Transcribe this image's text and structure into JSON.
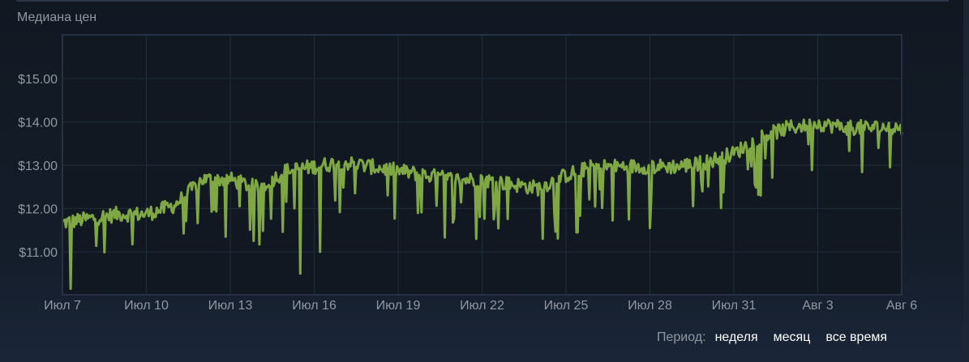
{
  "chart_title": "Медиана цен",
  "period": {
    "label": "Период:",
    "options": [
      "неделя",
      "месяц",
      "все время"
    ]
  },
  "colors": {
    "line": "#7fa844",
    "grid": "#1f2a38",
    "plot_border": "#263244",
    "axis_text": "#8f98a0"
  },
  "chart_data": {
    "type": "line",
    "title": "Медиана цен",
    "xlabel": "",
    "ylabel": "",
    "ylim": [
      10.0,
      16.0
    ],
    "yticks": [
      "$11.00",
      "$12.00",
      "$13.00",
      "$14.00",
      "$15.00"
    ],
    "ytick_values": [
      11,
      12,
      13,
      14,
      15
    ],
    "xticks": [
      "Июл 7",
      "Июл 10",
      "Июл 13",
      "Июл 16",
      "Июл 19",
      "Июл 22",
      "Июл 25",
      "Июл 28",
      "Июл 31",
      "Авг 3",
      "Авг 6"
    ],
    "grid": true,
    "legend": "none",
    "series": [
      {
        "name": "Медиана цен",
        "x_start": "Июл 7",
        "x_end": "Авг 6",
        "trend_days": [
          0,
          1,
          2,
          3,
          4,
          5,
          6,
          7,
          8,
          9,
          10,
          11,
          12,
          13,
          14,
          15,
          16,
          17,
          18,
          19,
          20,
          21,
          22,
          23,
          24,
          25,
          26,
          27,
          28,
          29,
          30
        ],
        "trend_values": [
          11.6,
          11.7,
          11.8,
          11.8,
          12.0,
          12.6,
          12.6,
          12.4,
          12.8,
          12.9,
          13.0,
          12.9,
          12.8,
          12.7,
          12.6,
          12.6,
          12.5,
          12.4,
          12.7,
          12.9,
          12.9,
          12.9,
          12.9,
          13.0,
          13.2,
          13.6,
          13.8,
          13.9,
          13.8,
          13.8,
          13.8
        ],
        "min_value": 10.15,
        "max_value": 14.05,
        "notable_dips": [
          {
            "day": 0.3,
            "value": 10.15
          },
          {
            "day": 8.5,
            "value": 10.5
          },
          {
            "day": 9.2,
            "value": 11.0
          },
          {
            "day": 14.8,
            "value": 11.3
          },
          {
            "day": 18.4,
            "value": 11.45
          },
          {
            "day": 21.0,
            "value": 11.55
          },
          {
            "day": 30.0,
            "value": 12.3
          }
        ],
        "end_value": 13.7
      }
    ]
  }
}
